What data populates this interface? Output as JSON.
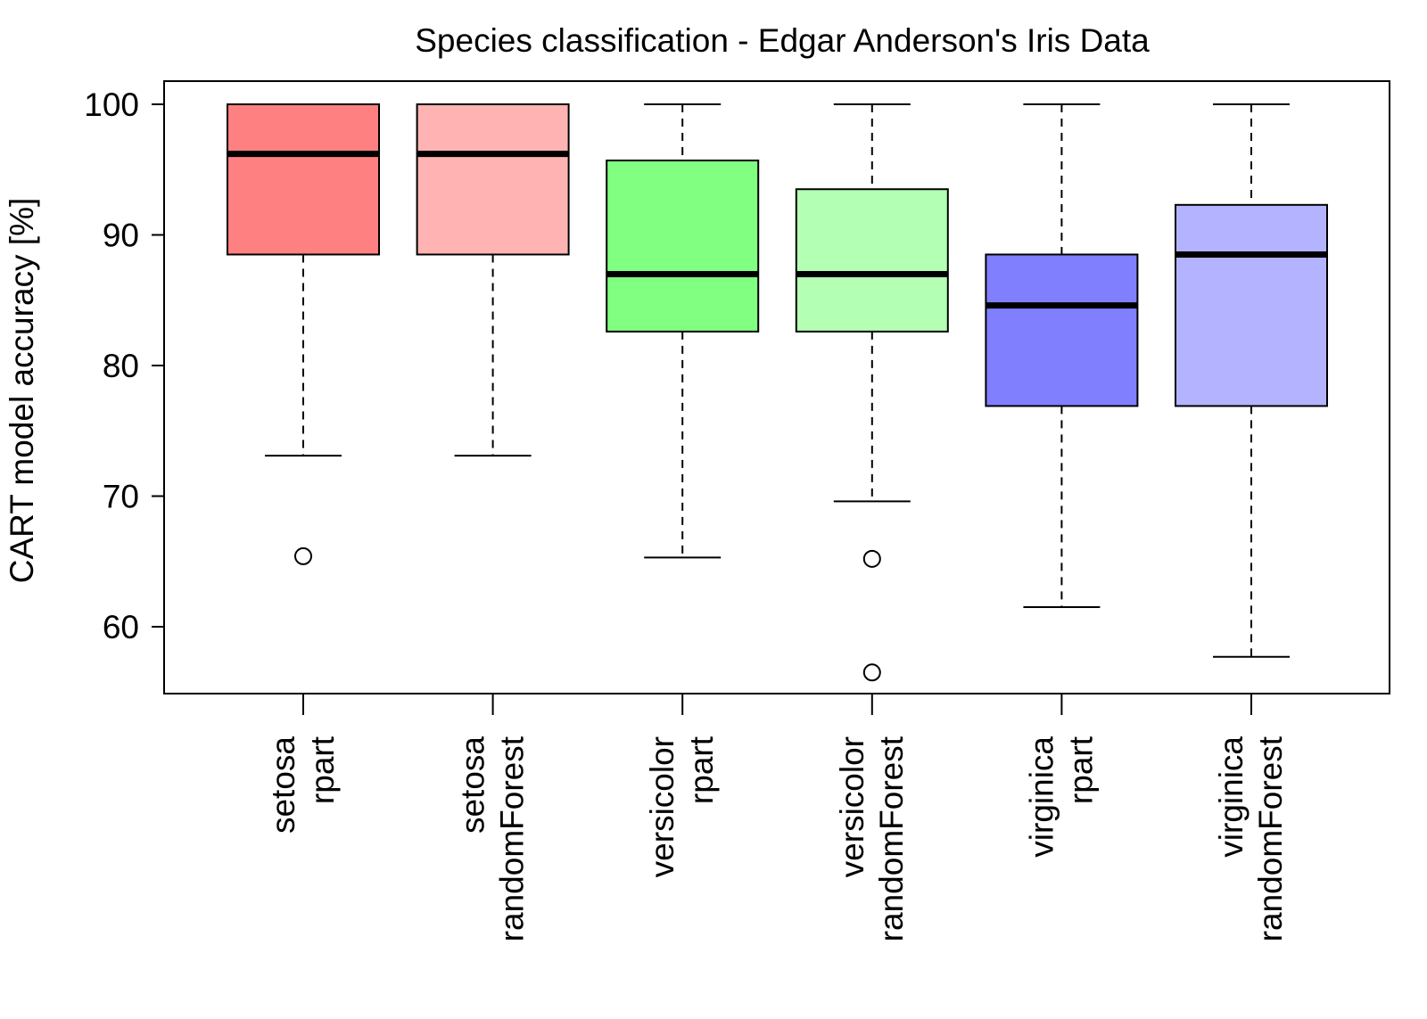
{
  "chart_data": {
    "type": "boxplot",
    "title": "Species classification - Edgar Anderson's Iris Data",
    "ylabel": "CART model accuracy [%]",
    "xlabel": "",
    "ylim": [
      55,
      102
    ],
    "yticks": [
      60,
      70,
      80,
      90,
      100
    ],
    "grid": false,
    "categories": [
      {
        "line1": "setosa",
        "line2": "rpart"
      },
      {
        "line1": "setosa",
        "line2": "randomForest"
      },
      {
        "line1": "versicolor",
        "line2": "rpart"
      },
      {
        "line1": "versicolor",
        "line2": "randomForest"
      },
      {
        "line1": "virginica",
        "line2": "rpart"
      },
      {
        "line1": "virginica",
        "line2": "randomForest"
      }
    ],
    "boxes": [
      {
        "whisker_low": 73.1,
        "q1": 88.5,
        "median": 96.2,
        "q3": 100.0,
        "whisker_high": 100.0,
        "outliers": [
          65.4
        ],
        "fill": "#ff8080"
      },
      {
        "whisker_low": 73.1,
        "q1": 88.5,
        "median": 96.2,
        "q3": 100.0,
        "whisker_high": 100.0,
        "outliers": [],
        "fill": "#ffb3b3"
      },
      {
        "whisker_low": 65.3,
        "q1": 82.6,
        "median": 87.0,
        "q3": 95.7,
        "whisker_high": 100.0,
        "outliers": [],
        "fill": "#80ff80"
      },
      {
        "whisker_low": 69.6,
        "q1": 82.6,
        "median": 87.0,
        "q3": 93.5,
        "whisker_high": 100.0,
        "outliers": [
          65.2,
          56.5
        ],
        "fill": "#b3ffb3"
      },
      {
        "whisker_low": 61.5,
        "q1": 76.9,
        "median": 84.6,
        "q3": 88.5,
        "whisker_high": 100.0,
        "outliers": [],
        "fill": "#8080ff"
      },
      {
        "whisker_low": 57.7,
        "q1": 76.9,
        "median": 88.5,
        "q3": 92.3,
        "whisker_high": 100.0,
        "outliers": [],
        "fill": "#b3b3ff"
      }
    ]
  }
}
